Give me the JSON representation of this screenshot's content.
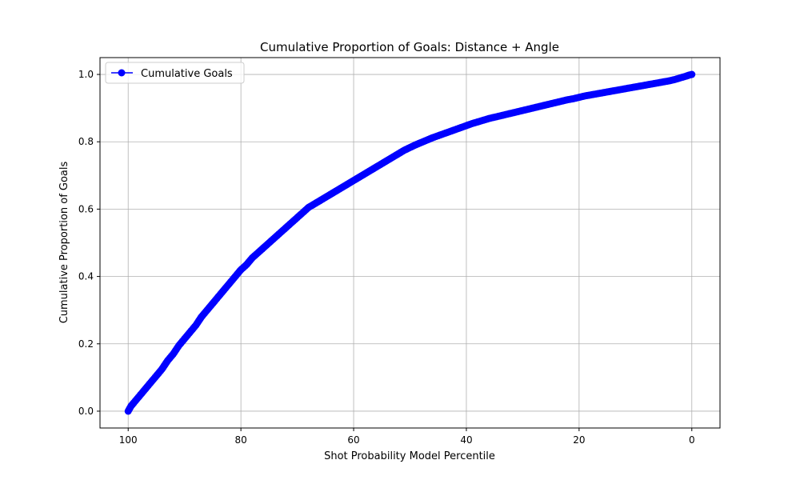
{
  "chart_data": {
    "type": "line",
    "title": "Cumulative Proportion of Goals: Distance + Angle",
    "xlabel": "Shot Probability Model Percentile",
    "ylabel": "Cumulative Proportion of Goals",
    "xlim": [
      105,
      -5
    ],
    "ylim": [
      -0.05,
      1.05
    ],
    "x_inverted": true,
    "grid": true,
    "legend_position": "top-left",
    "xticks": [
      100,
      80,
      60,
      40,
      20,
      0
    ],
    "xtick_labels": [
      "100",
      "80",
      "60",
      "40",
      "20",
      "0"
    ],
    "yticks": [
      0.0,
      0.2,
      0.4,
      0.6,
      0.8,
      1.0
    ],
    "ytick_labels": [
      "0.0",
      "0.2",
      "0.4",
      "0.6",
      "0.8",
      "1.0"
    ],
    "series": [
      {
        "name": "Cumulative Goals",
        "color": "#0000ff",
        "marker": "circle",
        "x": [
          100,
          99.5,
          99,
          98,
          97,
          96,
          95,
          94,
          93,
          92,
          91,
          90,
          89,
          88,
          87,
          86,
          85,
          84,
          83,
          82,
          81,
          80,
          79,
          78,
          77,
          76,
          75,
          74,
          73,
          72,
          71,
          70,
          69,
          68,
          67,
          66,
          65,
          64,
          63,
          62,
          61,
          60,
          59,
          58,
          57,
          56,
          55,
          54,
          53,
          52,
          51,
          50,
          49,
          48,
          47,
          46,
          45,
          44,
          43,
          42,
          41,
          40,
          39,
          38,
          37,
          36,
          35,
          34,
          33,
          32,
          31,
          30,
          29,
          28,
          27,
          26,
          25,
          24,
          23,
          22,
          21,
          20,
          19,
          18,
          17,
          16,
          15,
          14,
          13,
          12,
          11,
          10,
          9,
          8,
          7,
          6,
          5,
          4,
          3,
          2,
          1,
          0.5,
          0
        ],
        "y": [
          0.0,
          0.015,
          0.025,
          0.045,
          0.065,
          0.085,
          0.105,
          0.125,
          0.15,
          0.17,
          0.195,
          0.215,
          0.235,
          0.255,
          0.28,
          0.3,
          0.32,
          0.34,
          0.36,
          0.38,
          0.4,
          0.42,
          0.435,
          0.455,
          0.47,
          0.485,
          0.5,
          0.515,
          0.53,
          0.545,
          0.56,
          0.575,
          0.59,
          0.605,
          0.615,
          0.625,
          0.635,
          0.645,
          0.655,
          0.665,
          0.675,
          0.685,
          0.695,
          0.705,
          0.715,
          0.725,
          0.735,
          0.745,
          0.755,
          0.765,
          0.775,
          0.783,
          0.791,
          0.798,
          0.805,
          0.812,
          0.818,
          0.824,
          0.83,
          0.836,
          0.842,
          0.848,
          0.854,
          0.859,
          0.864,
          0.869,
          0.873,
          0.877,
          0.881,
          0.885,
          0.889,
          0.893,
          0.897,
          0.901,
          0.905,
          0.909,
          0.913,
          0.917,
          0.921,
          0.925,
          0.928,
          0.932,
          0.936,
          0.939,
          0.942,
          0.945,
          0.948,
          0.951,
          0.954,
          0.957,
          0.96,
          0.963,
          0.966,
          0.969,
          0.972,
          0.975,
          0.978,
          0.981,
          0.985,
          0.99,
          0.995,
          0.998,
          1.0
        ]
      }
    ]
  }
}
